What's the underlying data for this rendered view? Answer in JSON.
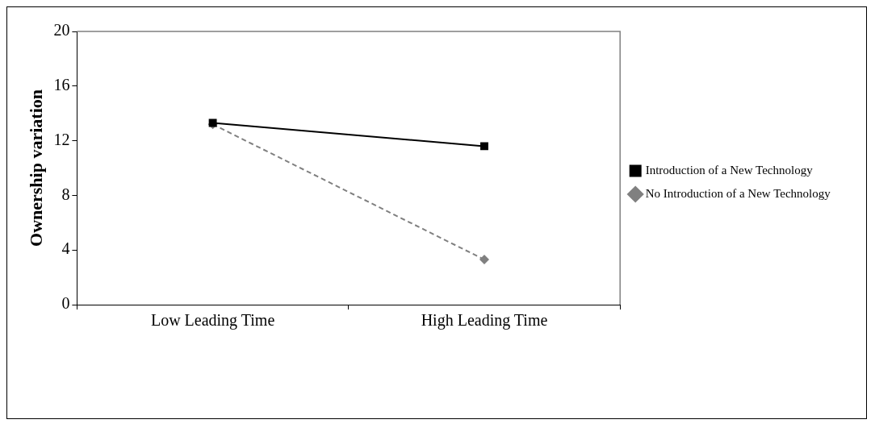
{
  "chart_data": {
    "type": "line",
    "ylabel": "Ownership variation",
    "categories": [
      "Low Leading Time",
      "High Leading Time"
    ],
    "series": [
      {
        "name": "No Introduction of a New Technology",
        "color": "#808080",
        "values": [
          13.2,
          3.3
        ],
        "marker": "diamond",
        "line_style": "dashed"
      },
      {
        "name": "Introduction of a New Technology",
        "color": "#000000",
        "values": [
          13.3,
          11.6
        ],
        "marker": "square",
        "line_style": "solid"
      }
    ],
    "ylim": [
      0,
      20
    ],
    "yticks": [
      0,
      4,
      8,
      12,
      16,
      20
    ],
    "grid": false,
    "legend": "right"
  }
}
